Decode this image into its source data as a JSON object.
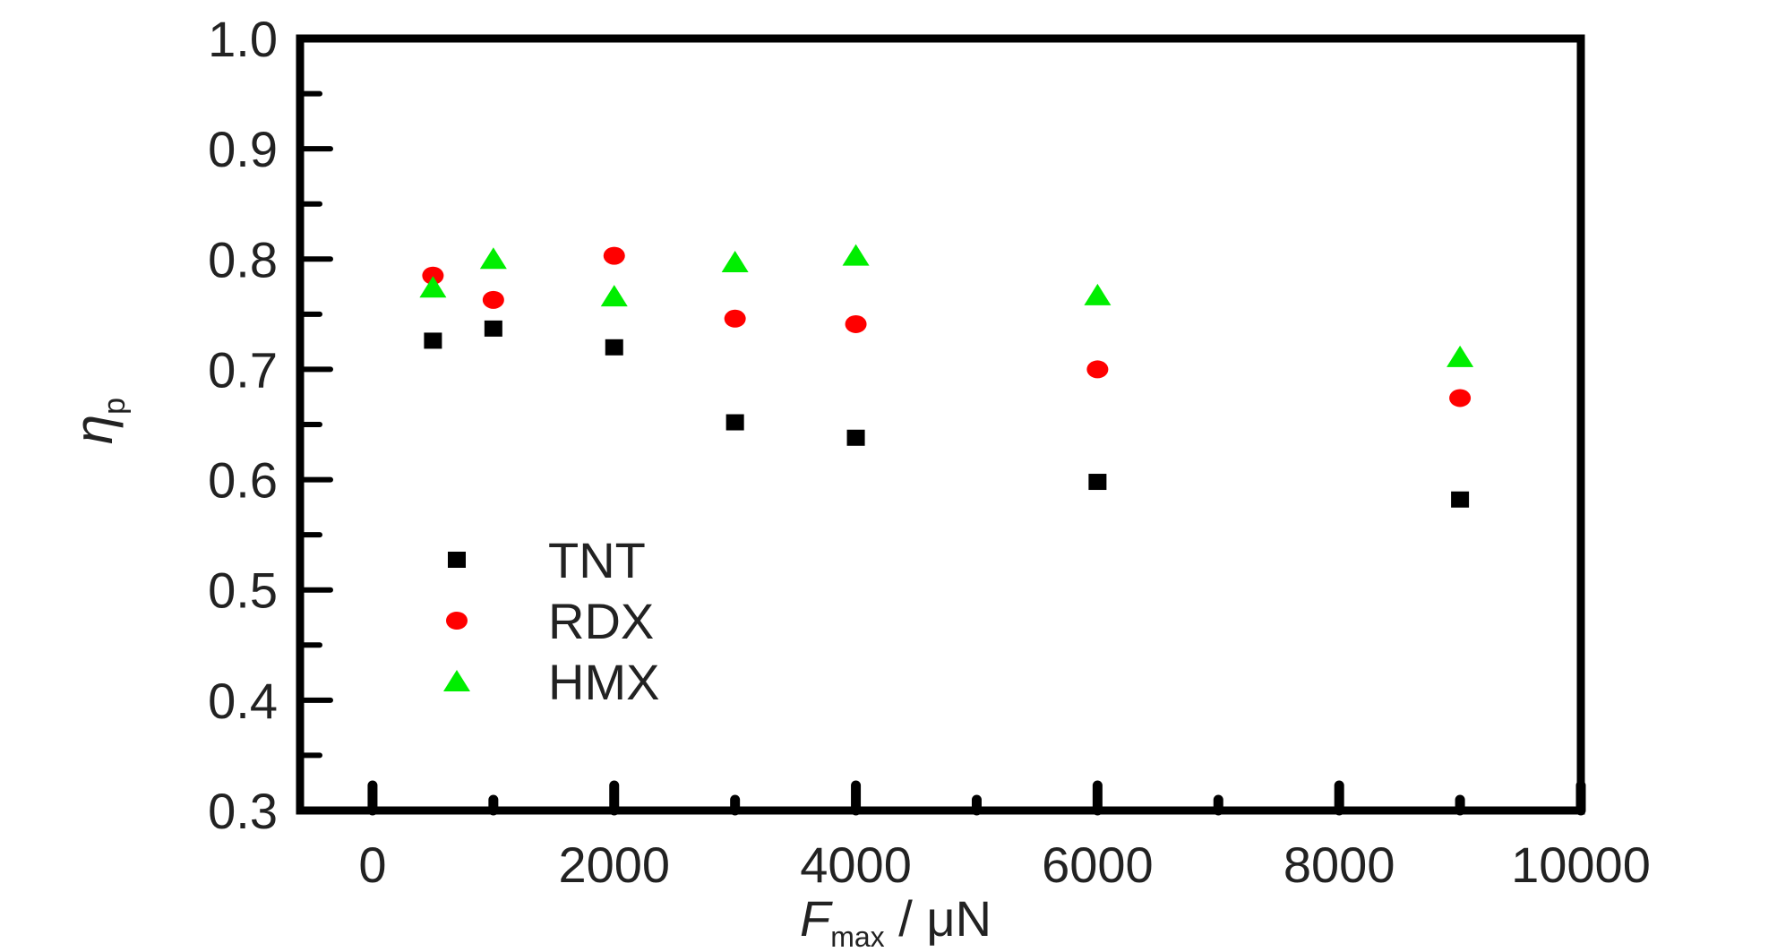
{
  "chart_data": {
    "type": "scatter",
    "xlabel": {
      "main": "F",
      "sub": "max",
      "rest": " / μN"
    },
    "ylabel": {
      "main": "η",
      "sub": "p"
    },
    "xlim": [
      -600,
      10000
    ],
    "ylim": [
      0.3,
      1.0
    ],
    "x_major_ticks": [
      0,
      2000,
      4000,
      6000,
      8000,
      10000
    ],
    "x_tick_labels": [
      "0",
      "2000",
      "4000",
      "6000",
      "8000",
      "10000"
    ],
    "x_minor_ticks": [
      1000,
      3000,
      5000,
      7000,
      9000
    ],
    "y_major_ticks": [
      0.3,
      0.4,
      0.5,
      0.6,
      0.7,
      0.8,
      0.9,
      1.0
    ],
    "y_tick_labels": [
      "0.3",
      "0.4",
      "0.5",
      "0.6",
      "0.7",
      "0.8",
      "0.9",
      "1.0"
    ],
    "y_minor_ticks": [
      0.35,
      0.45,
      0.55,
      0.65,
      0.75,
      0.85,
      0.95
    ],
    "grid": false,
    "legend_position": "lower-left",
    "series": [
      {
        "name": "TNT",
        "marker": "square",
        "color": "#000000",
        "x": [
          500,
          1000,
          2000,
          3000,
          4000,
          6000,
          9000
        ],
        "y": [
          0.726,
          0.737,
          0.72,
          0.652,
          0.638,
          0.598,
          0.582
        ]
      },
      {
        "name": "RDX",
        "marker": "circle",
        "color": "#ff0000",
        "x": [
          500,
          1000,
          2000,
          3000,
          4000,
          6000,
          9000
        ],
        "y": [
          0.785,
          0.763,
          0.803,
          0.746,
          0.741,
          0.7,
          0.674
        ]
      },
      {
        "name": "HMX",
        "marker": "triangle",
        "color": "#00ee00",
        "x": [
          500,
          1000,
          2000,
          3000,
          4000,
          6000,
          9000
        ],
        "y": [
          0.774,
          0.8,
          0.766,
          0.797,
          0.803,
          0.767,
          0.711
        ]
      }
    ]
  }
}
